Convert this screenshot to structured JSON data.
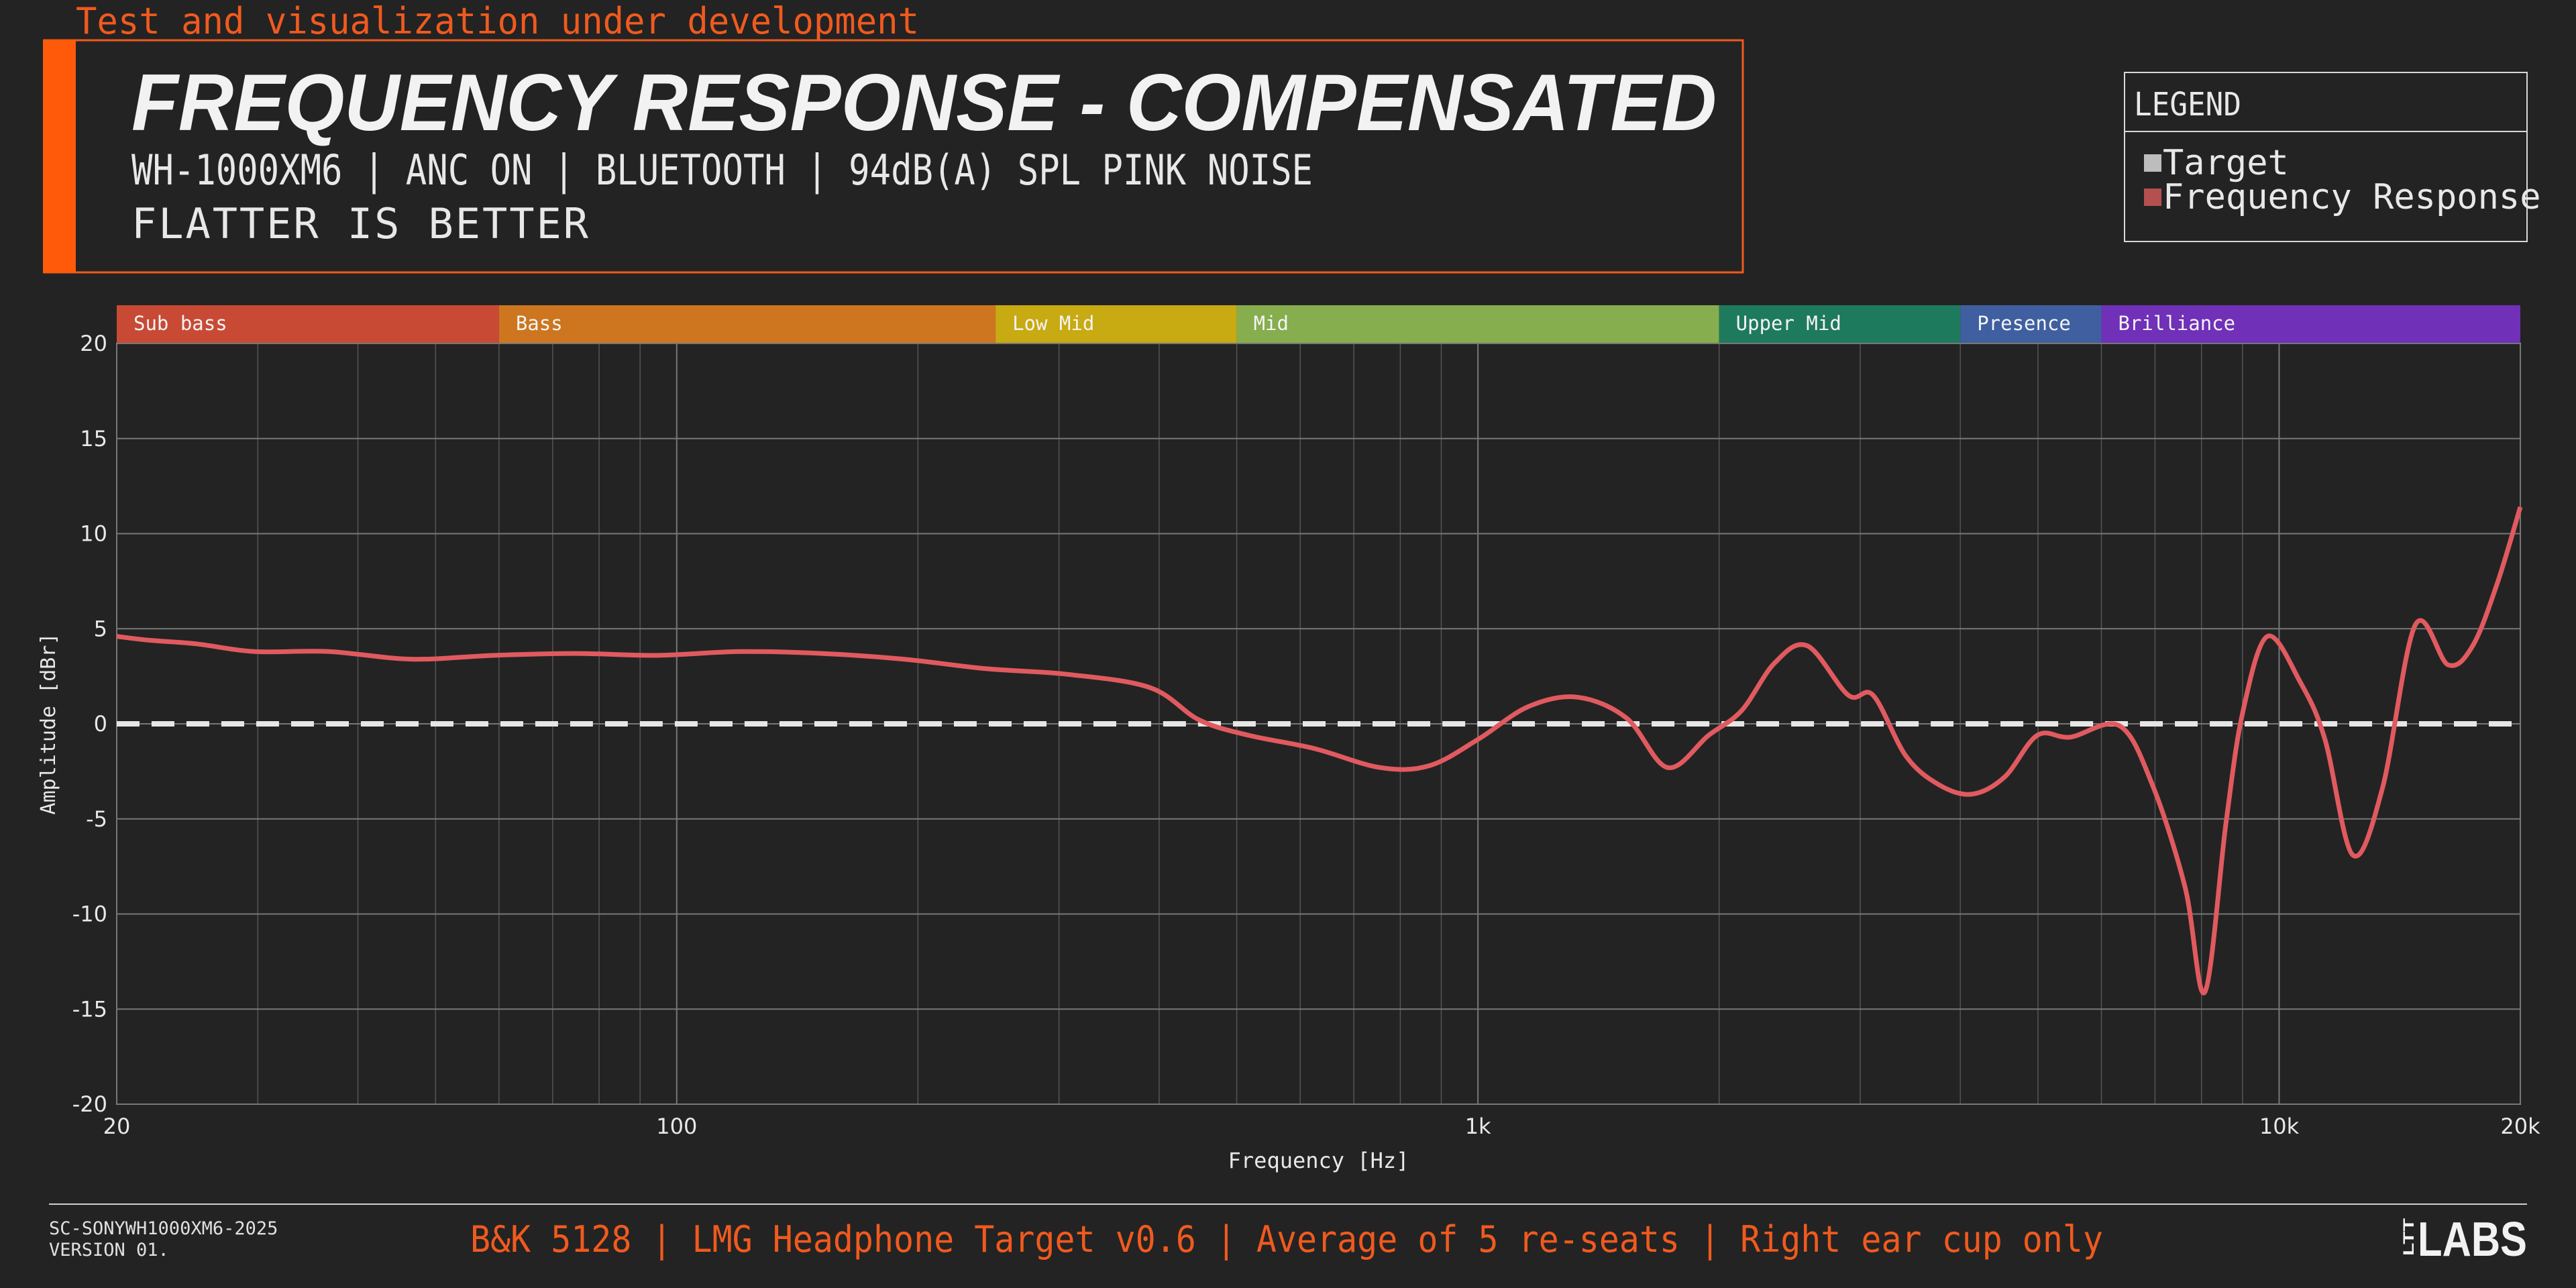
{
  "notice": "Test and visualization under development",
  "chart_data": {
    "type": "line",
    "title": "FREQUENCY RESPONSE - COMPENSATED",
    "subtitle": "WH-1000XM6 | ANC ON | BLUETOOTH | 94dB(A) SPL PINK NOISE",
    "subtitle2": "FLATTER IS BETTER",
    "xlabel": "Frequency [Hz]",
    "ylabel": "Amplitude [dBr]",
    "log_x": true,
    "xlim": [
      20,
      20000
    ],
    "ylim": [
      -20,
      20
    ],
    "xticks": [
      20,
      100,
      {
        "value": 1000,
        "label": "1k"
      },
      {
        "value": 10000,
        "label": "10k"
      },
      {
        "value": 20000,
        "label": "20k"
      }
    ],
    "xminor_ticks": [
      30,
      40,
      50,
      60,
      70,
      80,
      90,
      200,
      300,
      400,
      500,
      600,
      700,
      800,
      900,
      2000,
      3000,
      4000,
      5000,
      6000,
      7000,
      8000,
      9000
    ],
    "yticks": [
      -20,
      -15,
      -10,
      -5,
      0,
      5,
      10,
      15,
      20
    ],
    "grid": true,
    "legend_title": "LEGEND",
    "legend_position": "top-right",
    "bands": [
      {
        "name": "Sub bass",
        "start": 20,
        "end": 60,
        "color": "#c84a35"
      },
      {
        "name": "Bass",
        "start": 60,
        "end": 250,
        "color": "#cd761f"
      },
      {
        "name": "Low Mid",
        "start": 250,
        "end": 500,
        "color": "#c8aa12"
      },
      {
        "name": "Mid",
        "start": 500,
        "end": 2000,
        "color": "#86ad4e"
      },
      {
        "name": "Upper Mid",
        "start": 2000,
        "end": 4000,
        "color": "#1e7a5c"
      },
      {
        "name": "Presence",
        "start": 4000,
        "end": 6000,
        "color": "#3f5fa0"
      },
      {
        "name": "Brilliance",
        "start": 6000,
        "end": 20000,
        "color": "#7030b8"
      }
    ],
    "series": [
      {
        "name": "Target",
        "color": "#e6e6e6",
        "dashed": true,
        "legend_color": "#bdbdbd",
        "x": [
          20,
          20000
        ],
        "values": [
          0,
          0
        ]
      },
      {
        "name": "Frequency Response",
        "color": "#e05a5f",
        "dashed": false,
        "legend_color": "#b45050",
        "x": [
          20,
          21.9,
          25.2,
          29.7,
          36.8,
          46.6,
          59,
          74.7,
          94.5,
          119.7,
          151.6,
          192,
          243,
          308,
          390,
          449,
          517,
          625,
          755,
          870,
          1002,
          1155,
          1331,
          1533,
          1725,
          1941,
          2134,
          2346,
          2578,
          2900,
          3114,
          3422,
          3761,
          4133,
          4542,
          4992,
          5486,
          6320,
          6946,
          7632,
          8078,
          8590,
          9006,
          9668,
          10624,
          11404,
          12358,
          13454,
          14790,
          16252,
          17440,
          18722,
          20000
        ],
        "values": [
          4.6,
          4.4,
          4.2,
          3.8,
          3.8,
          3.4,
          3.6,
          3.7,
          3.6,
          3.8,
          3.7,
          3.4,
          2.9,
          2.6,
          1.9,
          0.2,
          -0.6,
          -1.3,
          -2.3,
          -2.2,
          -0.8,
          0.9,
          1.4,
          0.3,
          -2.3,
          -0.6,
          0.7,
          3.2,
          4.1,
          1.5,
          1.5,
          -1.7,
          -3.2,
          -3.7,
          -2.8,
          -0.6,
          -0.7,
          -0.1,
          -3.2,
          -8.6,
          -14.1,
          -5.1,
          0.6,
          4.6,
          2.2,
          -0.8,
          -6.9,
          -3.4,
          5.2,
          3.1,
          4.1,
          7.4,
          11.4
        ]
      }
    ]
  },
  "footer": {
    "id": "SC-SONYWH1000XM6-2025",
    "version": "VERSION 01.",
    "note": "B&K 5128 | LMG Headphone Target v0.6 | Average of 5 re-seats | Right ear cup only",
    "logo": "LABS",
    "logo_small": "LTT"
  }
}
